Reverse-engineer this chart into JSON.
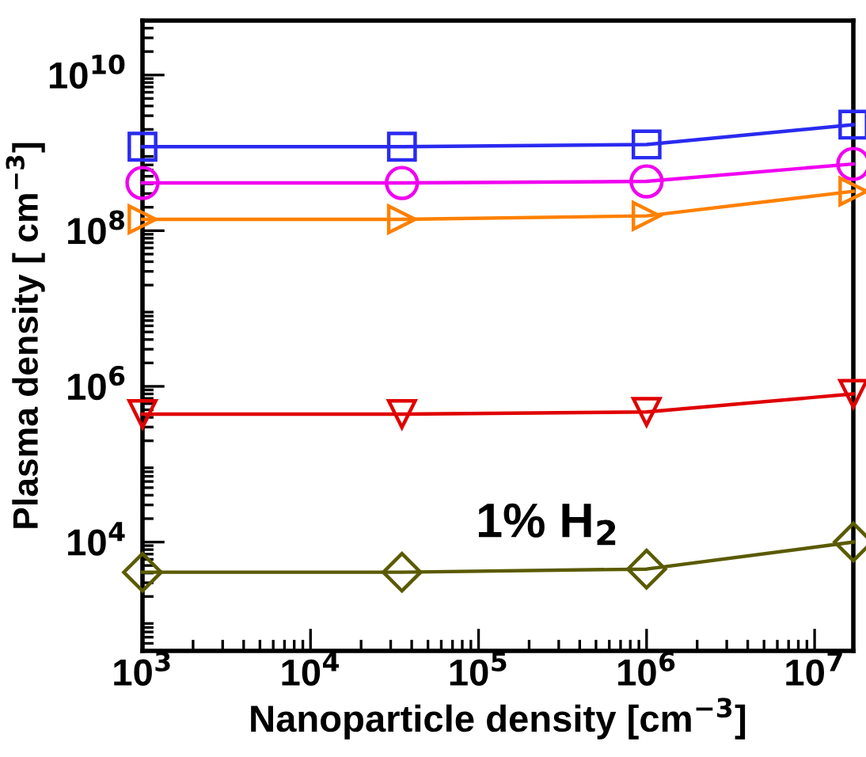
{
  "chart_data": {
    "type": "line",
    "xlabel": "Nanoparticle density [cm$^{−3}$]",
    "ylabel": "Plasma density [ cm$^{−3}$]",
    "log": "xy",
    "x": [
      1000,
      35000,
      1000000,
      17000000
    ],
    "series": [
      {
        "color": "#2a2af0",
        "marker": "square",
        "values": [
          1200000000.0,
          1200000000.0,
          1280000000.0,
          2300000000.0
        ]
      },
      {
        "color": "#f000f0",
        "marker": "circle",
        "values": [
          410000000.0,
          410000000.0,
          430000000.0,
          720000000.0
        ]
      },
      {
        "color": "#ff8000",
        "marker": "triangle_right",
        "values": [
          140000000.0,
          140000000.0,
          155000000.0,
          320000000.0
        ]
      },
      {
        "color": "#e00000",
        "marker": "triangle_down",
        "values": [
          440000.0,
          440000.0,
          470000.0,
          800000.0
        ]
      },
      {
        "color": "#5a5a00",
        "marker": "diamond",
        "values": [
          4100.0,
          4100.0,
          4500.0,
          10000.0
        ]
      }
    ],
    "xlim": [
      1000,
      17000000
    ],
    "ylim": [
      400,
      50000000000.0
    ],
    "xticks": [
      {
        "value": 1000,
        "label": "10$^{3}$"
      },
      {
        "value": 10000,
        "label": "10$^{4}$"
      },
      {
        "value": 100000,
        "label": "10$^{5}$"
      },
      {
        "value": 1000000,
        "label": "10$^{6}$"
      },
      {
        "value": 10000000,
        "label": "10$^{7}$"
      }
    ],
    "yticks": [
      {
        "value": 10000,
        "label": "10$^{4}$"
      },
      {
        "value": 1000000,
        "label": "10$^{6}$"
      },
      {
        "value": 100000000,
        "label": "10$^{8}$"
      },
      {
        "value": 10000000000,
        "label": "10$^{10}$"
      }
    ],
    "annotations": [
      "1% H$_{2}$"
    ],
    "grid": false
  }
}
